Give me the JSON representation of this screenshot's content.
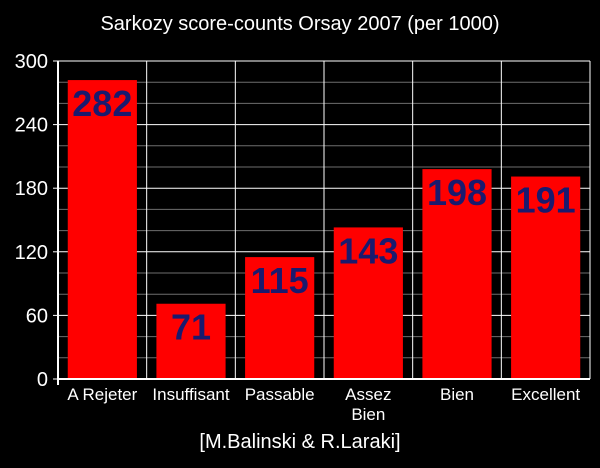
{
  "chart_data": {
    "type": "bar",
    "title": "Sarkozy score-counts Orsay 2007 (per 1000)",
    "categories": [
      [
        "A Rejeter"
      ],
      [
        "Insuffisant"
      ],
      [
        "Passable"
      ],
      [
        "Assez",
        "Bien"
      ],
      [
        "Bien"
      ],
      [
        "Excellent"
      ]
    ],
    "values": [
      282,
      71,
      115,
      143,
      198,
      191
    ],
    "ylim": [
      0,
      300
    ],
    "yticks": [
      0,
      60,
      120,
      180,
      240,
      300
    ],
    "minor_grid_step": 20,
    "xlabel": "[M.Balinski & R.Laraki]",
    "ylabel": "",
    "grid": true,
    "colors": {
      "background": "#000000",
      "bar": "#ff0000",
      "value_label": "#1a1a6e",
      "text": "#ffffff",
      "major_grid": "#ffffff",
      "minor_grid": "#6e6e6e"
    }
  }
}
